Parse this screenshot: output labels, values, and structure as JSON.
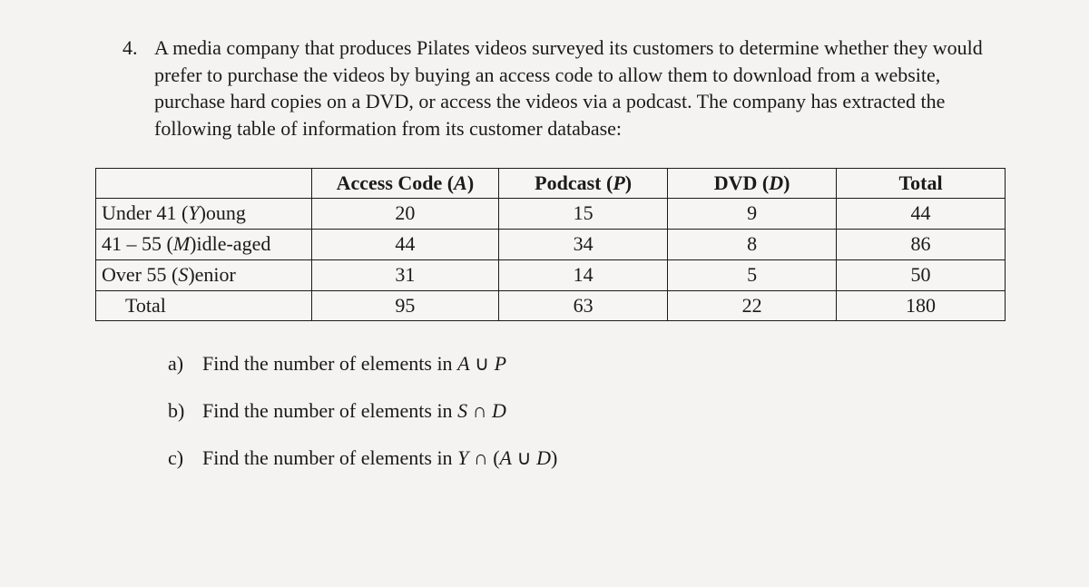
{
  "question": {
    "number": "4.",
    "text": "A media company that produces Pilates videos surveyed its customers to determine whether they would prefer to purchase the videos by buying an access code to allow them to download from a website, purchase hard copies on a DVD, or access the videos via a podcast. The company has extracted the following table of information from its customer database:"
  },
  "table": {
    "columns": [
      {
        "label_pre": "Access Code (",
        "italic": "A",
        "label_post": ")"
      },
      {
        "label_pre": "Podcast (",
        "italic": "P",
        "label_post": ")"
      },
      {
        "label_pre": "DVD (",
        "italic": "D",
        "label_post": ")"
      },
      {
        "label_pre": "Total",
        "italic": "",
        "label_post": ""
      }
    ],
    "rows": [
      {
        "label_pre": "Under 41 (",
        "italic": "Y",
        "label_post": ")oung",
        "values": [
          "20",
          "15",
          "9",
          "44"
        ]
      },
      {
        "label_pre": "41 – 55 (",
        "italic": "M",
        "label_post": ")idle-aged",
        "values": [
          "44",
          "34",
          "8",
          "86"
        ]
      },
      {
        "label_pre": "Over 55 (",
        "italic": "S",
        "label_post": ")enior",
        "values": [
          "31",
          "14",
          "5",
          "50"
        ]
      },
      {
        "label_pre": "Total",
        "italic": "",
        "label_post": "",
        "values": [
          "95",
          "63",
          "22",
          "180"
        ],
        "indent": true
      }
    ]
  },
  "subq": {
    "a": {
      "label": "a)",
      "pre": "Find the number of elements in ",
      "italic1": "A",
      "mid": " ∪ ",
      "italic2": "P",
      "post": ""
    },
    "b": {
      "label": "b)",
      "pre": "Find the number of elements in ",
      "italic1": "S",
      "mid": " ∩ ",
      "italic2": "D",
      "post": ""
    },
    "c": {
      "label": "c)",
      "pre": "Find the number of elements in ",
      "italic1": "Y",
      "mid": " ∩ (",
      "italic2": "A",
      "mid2": " ∪ ",
      "italic3": "D",
      "post": ")"
    }
  }
}
